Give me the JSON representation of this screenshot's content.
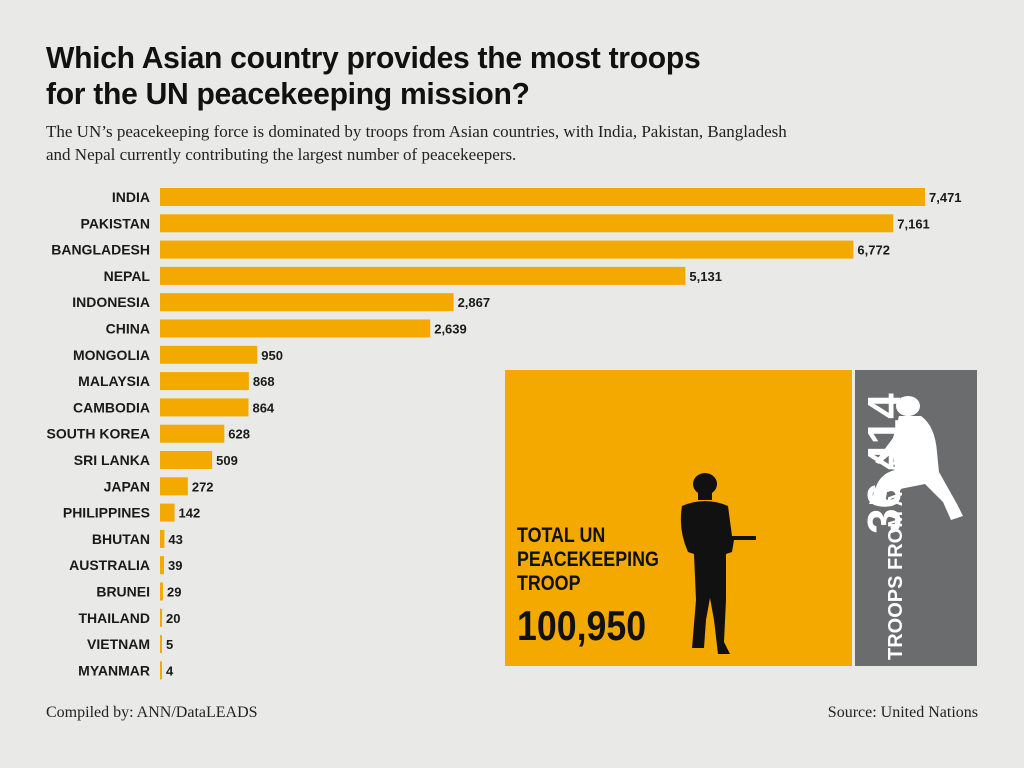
{
  "title_line1": "Which Asian country provides the most troops",
  "title_line2": "for the UN peacekeeping mission?",
  "subtitle": "The UN’s peacekeeping force is dominated by troops from Asian countries, with India, Pakistan, Bangladesh and Nepal currently contributing the largest number of peacekeepers.",
  "colors": {
    "bar": "#f4a900",
    "background": "#e9e9e7",
    "asia_box": "#6b6c6e"
  },
  "chart_data": {
    "type": "bar",
    "orientation": "horizontal",
    "title": "Which Asian country provides the most troops for the UN peacekeeping mission?",
    "xlabel": "",
    "ylabel": "",
    "xlim": [
      0,
      7471
    ],
    "categories": [
      "INDIA",
      "PAKISTAN",
      "BANGLADESH",
      "NEPAL",
      "INDONESIA",
      "CHINA",
      "MONGOLIA",
      "MALAYSIA",
      "CAMBODIA",
      "SOUTH KOREA",
      "SRI LANKA",
      "JAPAN",
      "PHILIPPINES",
      "BHUTAN",
      "AUSTRALIA",
      "BRUNEI",
      "THAILAND",
      "VIETNAM",
      "MYANMAR"
    ],
    "values": [
      7471,
      7161,
      6772,
      5131,
      2867,
      2639,
      950,
      868,
      864,
      628,
      509,
      272,
      142,
      43,
      39,
      29,
      20,
      5,
      4
    ],
    "value_labels": [
      "7,471",
      "7,161",
      "6,772",
      "5,131",
      "2,867",
      "2,639",
      "950",
      "868",
      "864",
      "628",
      "509",
      "272",
      "142",
      "43",
      "39",
      "29",
      "20",
      "5",
      "4"
    ],
    "grid": false
  },
  "total_box": {
    "label": "TOTAL UN PEACEKEEPING TROOP",
    "value": "100,950",
    "icon": "standing-soldier-icon"
  },
  "asia_box": {
    "label": "TROOPS FROM ASIA",
    "value": "36,414",
    "icon": "kneeling-soldier-icon"
  },
  "footer": {
    "compiled": "Compiled by: ANN/DataLEADS",
    "source": "Source: United Nations"
  }
}
